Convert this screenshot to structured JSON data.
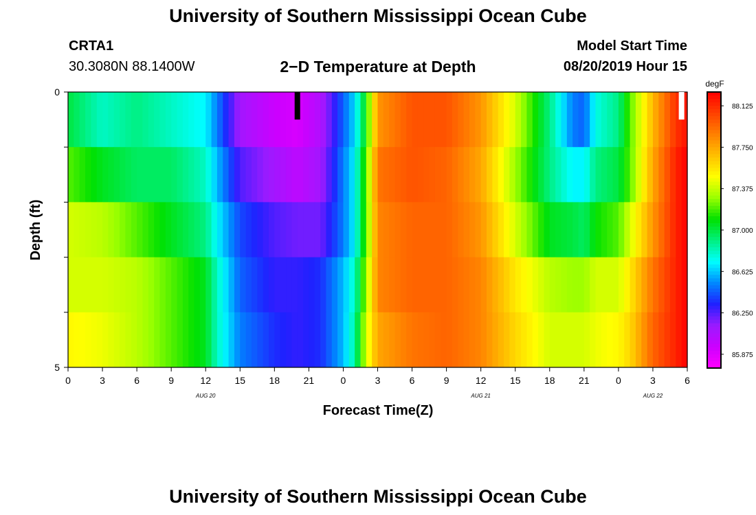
{
  "page": {
    "title_top": "University of Southern Mississippi Ocean Cube",
    "title_bottom": "University of Southern Mississippi Ocean Cube",
    "station": "CRTA1",
    "coords": "30.3080N 88.1400W",
    "plot_title": "2−D Temperature at Depth",
    "model_start_label": "Model Start Time",
    "model_start_value": "08/20/2019 Hour 15"
  },
  "chart_data": {
    "type": "heatmap",
    "title": "2−D Temperature at Depth",
    "xlabel": "Forecast Time(Z)",
    "ylabel": "Depth (ft)",
    "units": "degF",
    "x_hours": [
      0,
      54
    ],
    "x_ticks": [
      {
        "h": 0,
        "label": "0"
      },
      {
        "h": 3,
        "label": "3"
      },
      {
        "h": 6,
        "label": "6"
      },
      {
        "h": 9,
        "label": "9"
      },
      {
        "h": 12,
        "label": "12"
      },
      {
        "h": 15,
        "label": "15"
      },
      {
        "h": 18,
        "label": "18"
      },
      {
        "h": 21,
        "label": "21"
      },
      {
        "h": 24,
        "label": "0"
      },
      {
        "h": 27,
        "label": "3"
      },
      {
        "h": 30,
        "label": "6"
      },
      {
        "h": 33,
        "label": "9"
      },
      {
        "h": 36,
        "label": "12"
      },
      {
        "h": 39,
        "label": "15"
      },
      {
        "h": 42,
        "label": "18"
      },
      {
        "h": 45,
        "label": "21"
      },
      {
        "h": 48,
        "label": "0"
      },
      {
        "h": 51,
        "label": "3"
      },
      {
        "h": 54,
        "label": "6"
      }
    ],
    "date_labels": [
      {
        "h": 12,
        "label": "AUG 20"
      },
      {
        "h": 36,
        "label": "AUG 21"
      },
      {
        "h": 51,
        "label": "AUG 22"
      }
    ],
    "depth_ticks": [
      {
        "d": 0,
        "label": "0"
      },
      {
        "d": 1,
        "label": ""
      },
      {
        "d": 2,
        "label": ""
      },
      {
        "d": 3,
        "label": ""
      },
      {
        "d": 4,
        "label": ""
      },
      {
        "d": 5,
        "label": "5"
      }
    ],
    "depth_range": [
      0,
      5
    ],
    "colorbar": {
      "min": 85.75,
      "max": 88.25,
      "ticks": [
        "88.125",
        "87.750",
        "87.375",
        "87.000",
        "86.625",
        "86.250",
        "85.875"
      ],
      "colors": [
        "#ff00ff",
        "#cc00ff",
        "#9a1bff",
        "#2020ff",
        "#0088ff",
        "#00ffff",
        "#00f080",
        "#00e000",
        "#99ff00",
        "#ffff00",
        "#ffc000",
        "#ff8000",
        "#ff4000",
        "#ff0000"
      ]
    },
    "depth_layers": [
      0.5,
      1.5,
      2.5,
      3.5,
      4.5
    ],
    "time_hours": [
      0,
      3,
      6,
      9,
      12,
      13,
      15,
      18,
      20,
      22,
      24,
      25,
      26,
      27,
      30,
      33,
      36,
      39,
      42,
      44,
      45,
      46,
      48,
      49,
      51,
      53,
      54
    ],
    "temperature_f": [
      [
        87.0,
        86.8,
        86.9,
        86.8,
        86.7,
        86.5,
        86.1,
        85.95,
        85.9,
        86.05,
        86.45,
        86.65,
        87.1,
        87.8,
        88.0,
        88.0,
        87.8,
        87.4,
        86.9,
        86.5,
        86.45,
        86.75,
        86.9,
        87.2,
        87.7,
        88.1,
        88.2
      ],
      [
        87.2,
        87.05,
        86.95,
        86.95,
        86.8,
        86.6,
        86.25,
        86.1,
        86.0,
        86.1,
        86.5,
        86.7,
        87.2,
        87.9,
        88.0,
        87.95,
        87.75,
        87.3,
        86.9,
        86.7,
        86.7,
        86.9,
        87.0,
        87.2,
        87.75,
        88.15,
        88.25
      ],
      [
        87.4,
        87.35,
        87.2,
        87.05,
        86.9,
        86.7,
        86.4,
        86.25,
        86.2,
        86.2,
        86.5,
        86.7,
        87.2,
        87.85,
        87.95,
        87.95,
        87.8,
        87.4,
        87.05,
        87.0,
        86.95,
        87.1,
        87.2,
        87.4,
        87.8,
        88.15,
        88.25
      ],
      [
        87.4,
        87.4,
        87.35,
        87.2,
        87.05,
        86.8,
        86.45,
        86.3,
        86.3,
        86.35,
        86.6,
        86.8,
        87.3,
        87.85,
        87.95,
        87.95,
        87.85,
        87.55,
        87.35,
        87.3,
        87.3,
        87.4,
        87.4,
        87.55,
        87.9,
        88.15,
        88.25
      ],
      [
        87.5,
        87.45,
        87.35,
        87.2,
        87.05,
        86.8,
        86.5,
        86.35,
        86.3,
        86.35,
        86.6,
        86.85,
        87.4,
        87.75,
        87.9,
        87.95,
        87.85,
        87.6,
        87.4,
        87.4,
        87.4,
        87.45,
        87.5,
        87.6,
        87.95,
        88.15,
        88.25
      ]
    ],
    "markers": [
      {
        "h": 20.0,
        "depth": 0.5,
        "color": "#000000"
      },
      {
        "h": 53.5,
        "depth": 0.5,
        "color": "#ffffff"
      }
    ]
  }
}
